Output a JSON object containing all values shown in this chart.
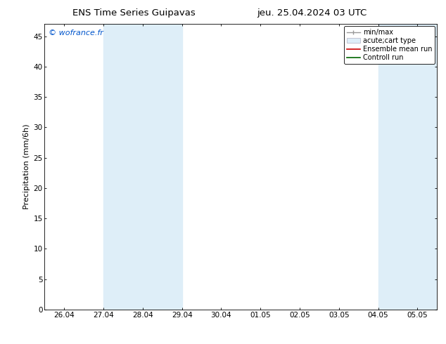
{
  "title_left": "ENS Time Series Guipavas",
  "title_right": "jeu. 25.04.2024 03 UTC",
  "ylabel": "Precipitation (mm/6h)",
  "watermark": "© wofrance.fr",
  "watermark_color": "#0055cc",
  "ylim": [
    0,
    47
  ],
  "yticks": [
    0,
    5,
    10,
    15,
    20,
    25,
    30,
    35,
    40,
    45
  ],
  "xtick_labels": [
    "26.04",
    "27.04",
    "28.04",
    "29.04",
    "30.04",
    "01.05",
    "02.05",
    "03.05",
    "04.05",
    "05.05"
  ],
  "xtick_positions": [
    0,
    1,
    2,
    3,
    4,
    5,
    6,
    7,
    8,
    9
  ],
  "shade_regions": [
    {
      "xmin": 1,
      "xmax": 2,
      "color": "#deeef8"
    },
    {
      "xmin": 2,
      "xmax": 3,
      "color": "#deeef8"
    },
    {
      "xmin": 8,
      "xmax": 9,
      "color": "#deeef8"
    },
    {
      "xmin": 9,
      "xmax": 9.5,
      "color": "#deeef8"
    }
  ],
  "background_color": "#ffffff",
  "legend_entries": [
    {
      "label": "min/max",
      "color": "#aaaaaa",
      "lw": 1.0
    },
    {
      "label": "acute;cart type",
      "color": "#deeef8",
      "patch": true
    },
    {
      "label": "Ensemble mean run",
      "color": "#cc0000",
      "lw": 1.0
    },
    {
      "label": "Controll run",
      "color": "#006600",
      "lw": 1.0
    }
  ],
  "title_fontsize": 9.5,
  "tick_fontsize": 7.5,
  "ylabel_fontsize": 8,
  "legend_fontsize": 7,
  "watermark_fontsize": 8
}
